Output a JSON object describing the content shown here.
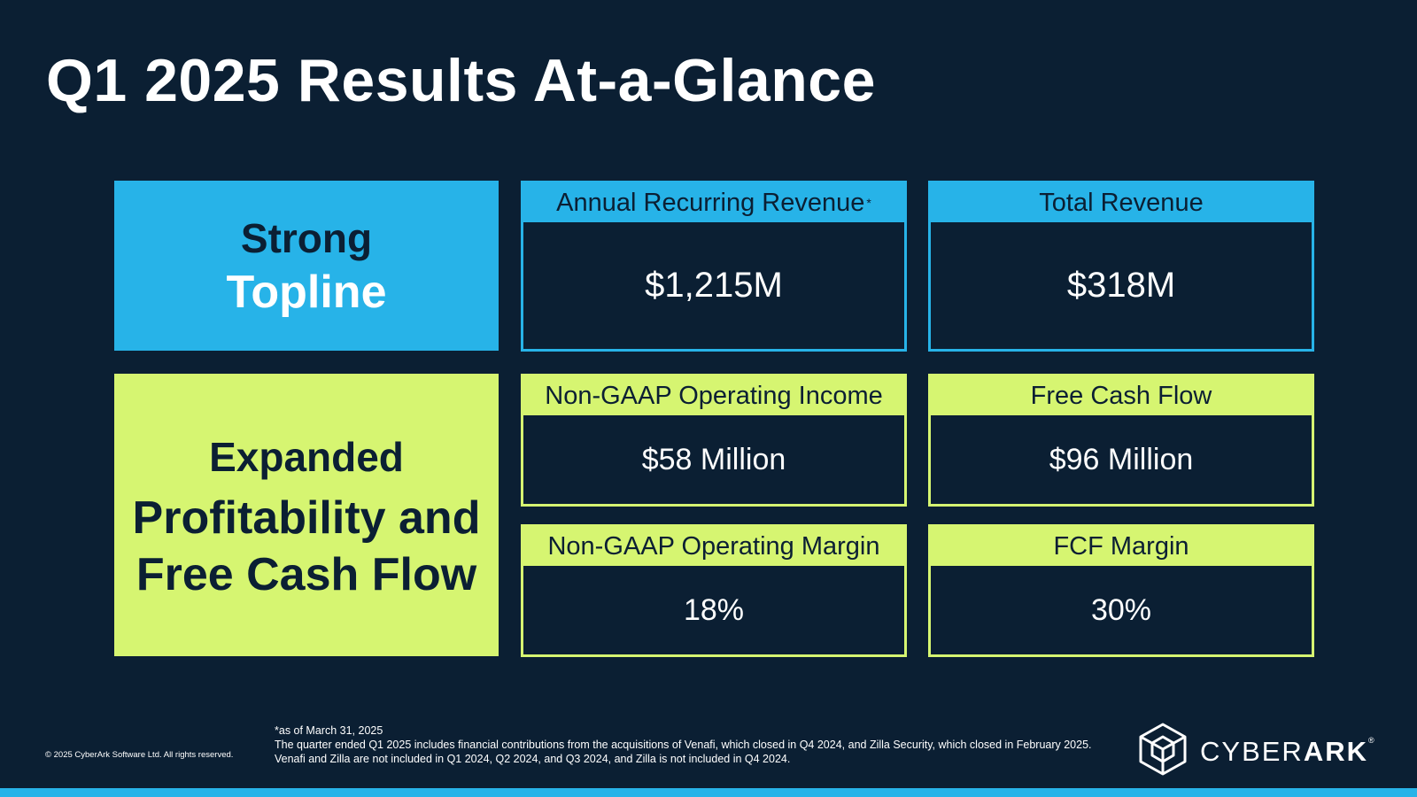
{
  "title": "Q1 2025 Results At-a-Glance",
  "categories": {
    "topline": {
      "line1": "Strong",
      "line2": "Topline",
      "color": "#27b3e8"
    },
    "profitability": {
      "line1": "Expanded",
      "line2": "Profitability and Free Cash Flow",
      "color": "#d6f571"
    }
  },
  "metrics": {
    "arr": {
      "label": "Annual Recurring Revenue",
      "marker": "*",
      "value": "$1,215M"
    },
    "total_revenue": {
      "label": "Total Revenue",
      "value": "$318M"
    },
    "op_income": {
      "label": "Non-GAAP Operating Income",
      "value": "$58 Million"
    },
    "fcf": {
      "label": "Free Cash Flow",
      "value": "$96 Million"
    },
    "op_margin": {
      "label": "Non-GAAP Operating Margin",
      "value": "18%"
    },
    "fcf_margin": {
      "label": "FCF Margin",
      "value": "30%"
    }
  },
  "footer": {
    "copyright": "© 2025 CyberArk Software Ltd. All rights reserved.",
    "notes": [
      "*as of March 31, 2025",
      "The quarter ended Q1 2025 includes financial contributions from the acquisitions of Venafi, which closed in Q4 2024, and Zilla Security, which closed in February 2025.",
      "Venafi and Zilla are not included in Q1 2024, Q2 2024, and Q3 2024, and Zilla is not included in Q4 2024."
    ],
    "logo": {
      "text_light": "CYBER",
      "text_bold": "ARK",
      "mark": "®",
      "icon": "cube-icon"
    }
  },
  "colors": {
    "background": "#0b1f33",
    "blue": "#27b3e8",
    "green": "#d6f571"
  }
}
